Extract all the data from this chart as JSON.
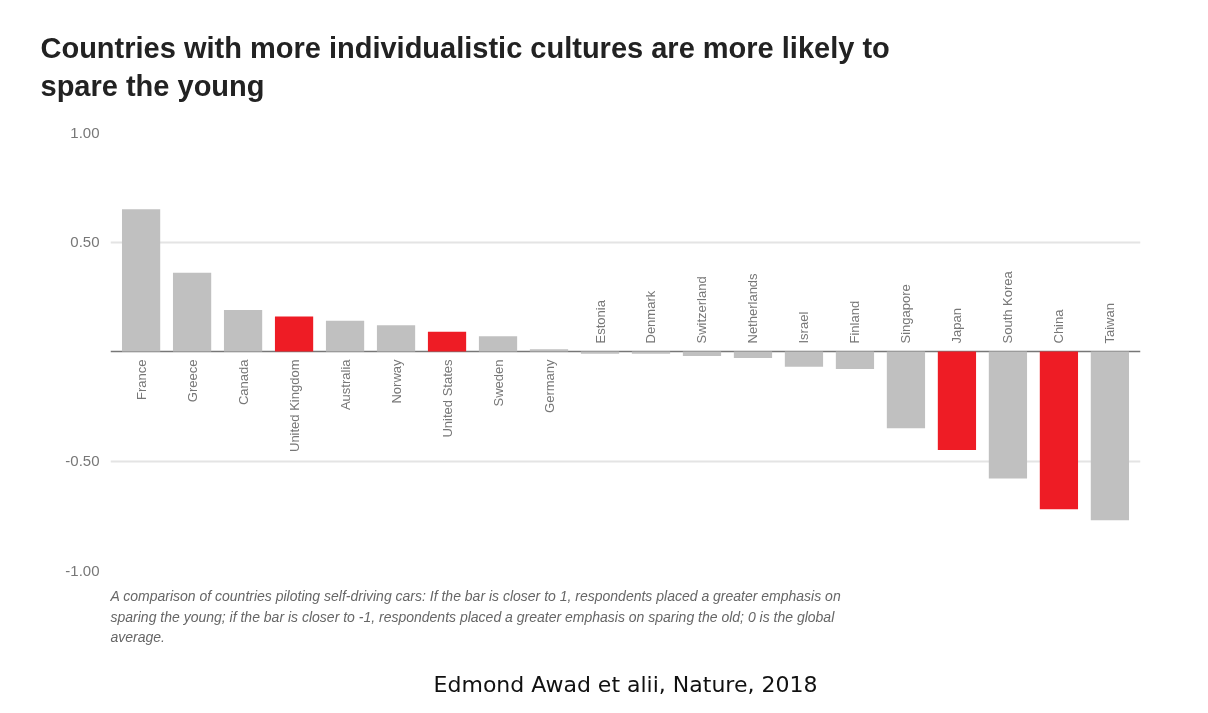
{
  "chart_data": {
    "type": "bar",
    "title": "Countries with more individualistic cultures are more likely to spare the young",
    "categories": [
      "France",
      "Greece",
      "Canada",
      "United Kingdom",
      "Australia",
      "Norway",
      "United States",
      "Sweden",
      "Germany",
      "Estonia",
      "Denmark",
      "Switzerland",
      "Netherlands",
      "Israel",
      "Finland",
      "Singapore",
      "Japan",
      "South Korea",
      "China",
      "Taiwan"
    ],
    "values": [
      0.65,
      0.36,
      0.19,
      0.16,
      0.14,
      0.12,
      0.09,
      0.07,
      0.01,
      -0.01,
      -0.01,
      -0.02,
      -0.03,
      -0.07,
      -0.08,
      -0.35,
      -0.45,
      -0.58,
      -0.72,
      -0.77
    ],
    "colors": [
      "#c0c0c0",
      "#c0c0c0",
      "#c0c0c0",
      "#ee1c25",
      "#c0c0c0",
      "#c0c0c0",
      "#ee1c25",
      "#c0c0c0",
      "#c0c0c0",
      "#c0c0c0",
      "#c0c0c0",
      "#c0c0c0",
      "#c0c0c0",
      "#c0c0c0",
      "#c0c0c0",
      "#c0c0c0",
      "#ee1c25",
      "#c0c0c0",
      "#ee1c25",
      "#c0c0c0"
    ],
    "ylim": [
      -1,
      1
    ],
    "yticks": [
      {
        "value": 1,
        "label": "1.00"
      },
      {
        "value": 0.5,
        "label": "0.50"
      },
      {
        "value": -0.5,
        "label": "-0.50"
      },
      {
        "value": -1,
        "label": "-1.00"
      }
    ],
    "grid": "y",
    "tick_labels": "y",
    "annotations": [
      "A comparison of countries piloting self-driving cars: If the bar is closer to 1, respondents placed a greater emphasis on sparing the young; if the bar is closer to -1, respondents placed a greater emphasis on sparing the old; 0 is the global average.",
      "Edmond Awad et alii, Nature, 2018"
    ]
  }
}
